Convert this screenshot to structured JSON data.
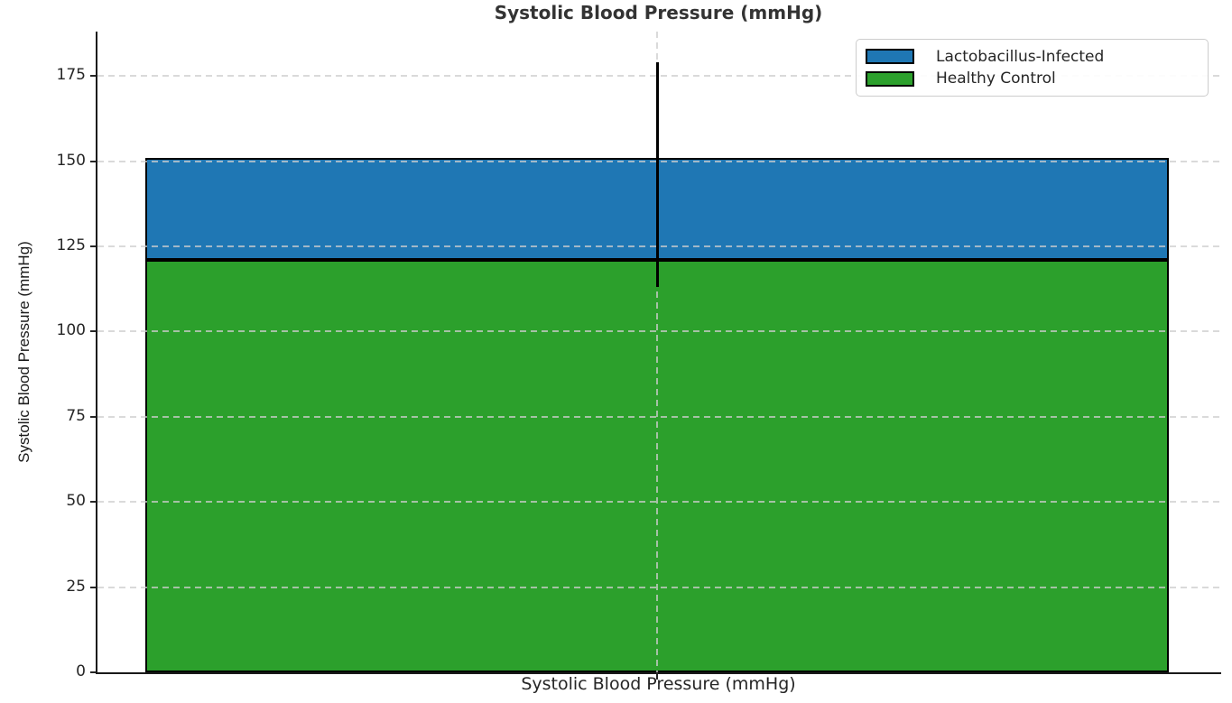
{
  "figure": {
    "title": "Systolic Blood Pressure (mmHg)"
  },
  "chart_data": {
    "type": "bar",
    "stacked": true,
    "orientation": "vertical",
    "categories": [
      "Systolic Blood Pressure (mmHg)"
    ],
    "series": [
      {
        "name": "Healthy Control",
        "values": [
          121
        ],
        "color": "#2ca02c"
      },
      {
        "name": "Lactobacillus-Infected",
        "values": [
          30
        ],
        "color": "#1f77b4"
      }
    ],
    "stack_totals": [
      151
    ],
    "error_bar": {
      "low": 113,
      "high": 179,
      "color": "#000000"
    },
    "title": "Systolic Blood Pressure (mmHg)",
    "xlabel": "Systolic Blood Pressure (mmHg)",
    "ylabel": "Systolic Blood Pressure (mmHg)",
    "yticks": [
      0,
      25,
      50,
      75,
      100,
      125,
      150,
      175
    ],
    "ylim": [
      0,
      188
    ],
    "grid": "dashed light-gray horizontal lines at each y tick plus vertical line at bar center, drawn above bars",
    "bar_edge_color": "#000000",
    "legend": {
      "position": "upper right",
      "entries": [
        {
          "label": "Lactobacillus-Infected",
          "color": "#1f77b4"
        },
        {
          "label": "Healthy Control",
          "color": "#2ca02c"
        }
      ]
    }
  }
}
